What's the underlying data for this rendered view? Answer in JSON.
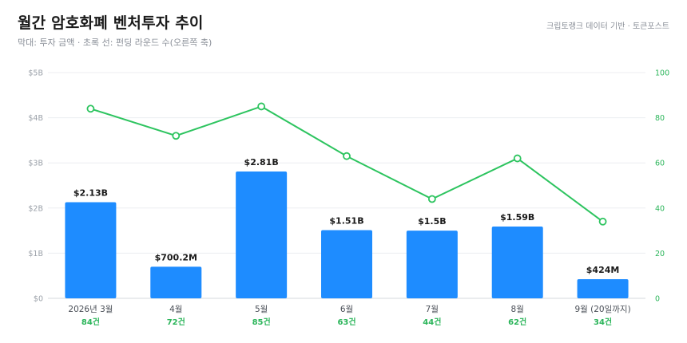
{
  "header": {
    "title": "월간 암호화폐 벤처투자 추이",
    "subtitle": "막대: 투자 금액 · 초록 선: 펀딩 라운드 수(오른쪽 축)",
    "source": "크립토랭크 데이터 기반 · 토큰포스트"
  },
  "chart_data": {
    "type": "bar",
    "categories": [
      "2026년 3월",
      "4월",
      "5월",
      "6월",
      "7월",
      "8월",
      "9월 (20일까지)"
    ],
    "series": [
      {
        "type": "bar",
        "axis": "left",
        "values": [
          2.13,
          0.7002,
          2.81,
          1.51,
          1.5,
          1.59,
          0.424
        ],
        "labels": [
          "$2.13B",
          "$700.2M",
          "$2.81B",
          "$1.51B",
          "$1.5B",
          "$1.59B",
          "$424M"
        ],
        "color": "#1e8cff"
      },
      {
        "type": "line",
        "axis": "right",
        "values": [
          84,
          72,
          85,
          63,
          44,
          62,
          34
        ],
        "labels": [
          "84건",
          "72건",
          "85건",
          "63건",
          "44건",
          "62건",
          "34건"
        ],
        "color": "#2dc45f"
      }
    ],
    "y_left": {
      "min": 0,
      "max": 5,
      "ticks": [
        0,
        1,
        2,
        3,
        4,
        5
      ],
      "tick_labels": [
        "$0",
        "$1B",
        "$2B",
        "$3B",
        "$4B",
        "$5B"
      ]
    },
    "y_right": {
      "min": 0,
      "max": 100,
      "ticks": [
        0,
        20,
        40,
        60,
        80,
        100
      ],
      "tick_labels": [
        "0",
        "20",
        "40",
        "60",
        "80",
        "100"
      ]
    },
    "grid": true,
    "legend": "none"
  }
}
